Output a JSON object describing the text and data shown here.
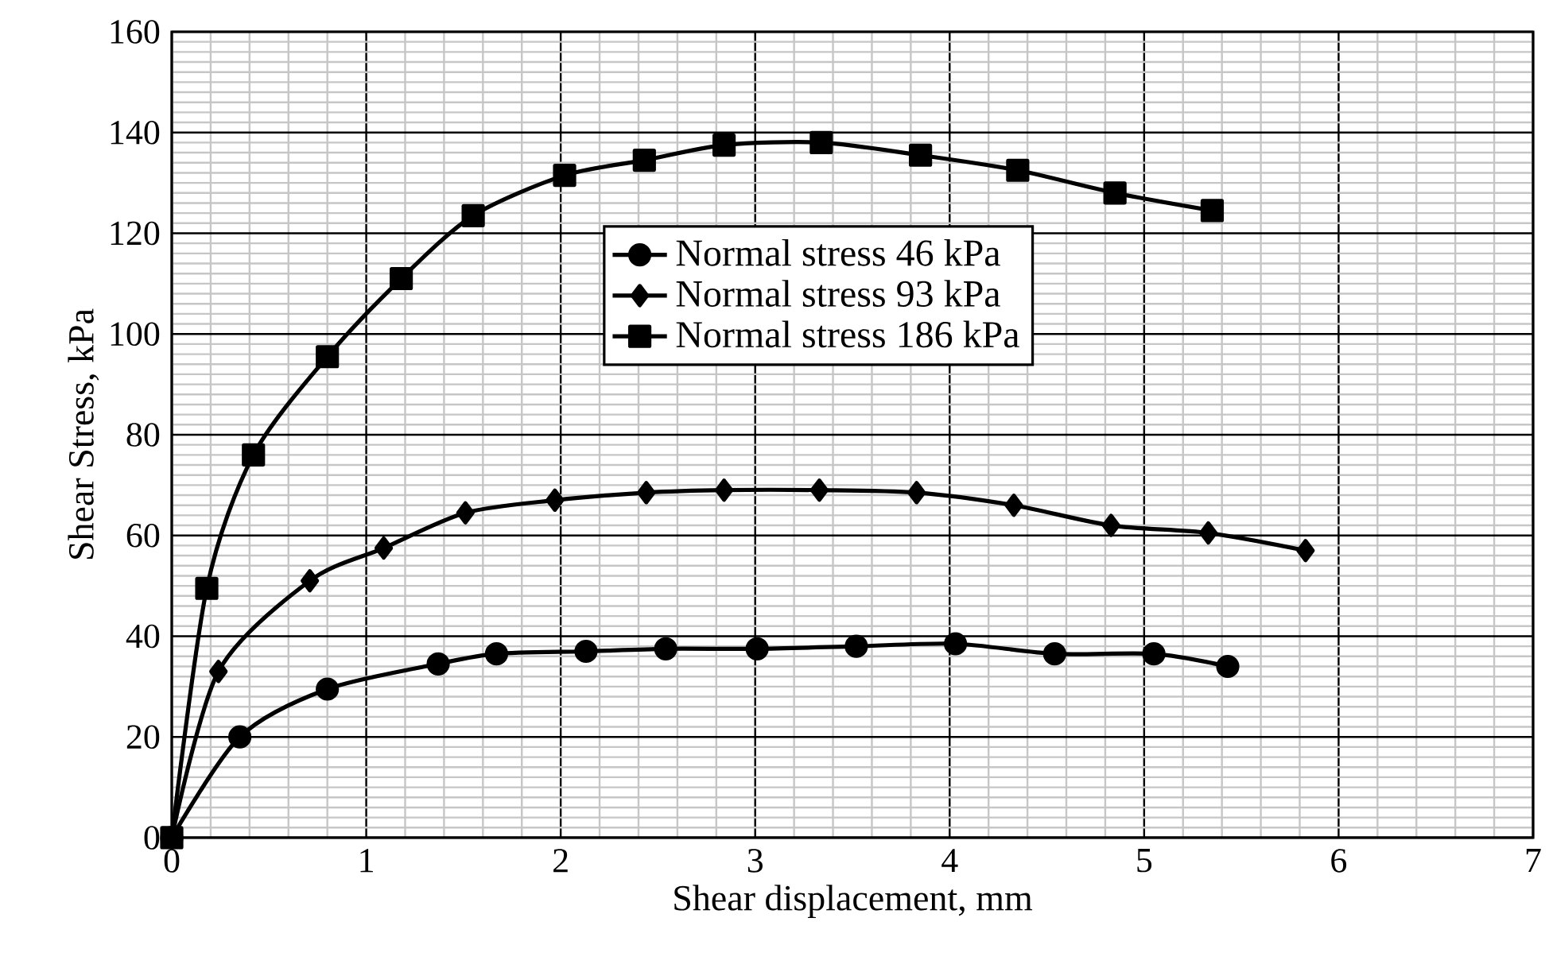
{
  "chart_data": {
    "type": "line",
    "xlabel": "Shear displacement, mm",
    "ylabel": "Shear Stress,  kPa",
    "xlim": [
      0,
      7
    ],
    "ylim": [
      0,
      160
    ],
    "xticks": [
      0,
      1,
      2,
      3,
      4,
      5,
      6,
      7
    ],
    "yticks": [
      0,
      20,
      40,
      60,
      80,
      100,
      120,
      140,
      160
    ],
    "grid": true,
    "legend": "top",
    "line_style": "solid",
    "series": [
      {
        "name": "Normal stress 46 kPa",
        "color": "#000000",
        "marker": "circle",
        "x": [
          0,
          0.35,
          0.8,
          1.37,
          1.67,
          2.13,
          2.54,
          3.01,
          3.52,
          4.03,
          4.54,
          5.05,
          5.43
        ],
        "values": [
          0,
          20,
          29.5,
          34.5,
          36.5,
          37,
          37.5,
          37.5,
          38,
          38.5,
          36.5,
          36.5,
          34
        ]
      },
      {
        "name": "Normal stress 93 kPa",
        "color": "#000000",
        "marker": "diamond",
        "x": [
          0,
          0.24,
          0.71,
          1.09,
          1.51,
          1.97,
          2.44,
          2.84,
          3.33,
          3.83,
          4.33,
          4.83,
          5.33,
          5.83
        ],
        "values": [
          0,
          33,
          51,
          57.5,
          64.5,
          67,
          68.5,
          69,
          69,
          68.5,
          66,
          62,
          60.5,
          57
        ]
      },
      {
        "name": "Normal stress 186 kPa",
        "color": "#000000",
        "marker": "square",
        "x": [
          0,
          0.18,
          0.42,
          0.8,
          1.18,
          1.55,
          2.02,
          2.43,
          2.84,
          3.34,
          3.85,
          4.35,
          4.85,
          5.35
        ],
        "values": [
          0,
          49.5,
          76,
          95.5,
          111,
          123.5,
          131.5,
          134.5,
          137.5,
          138,
          135.5,
          132.5,
          128,
          124.5
        ]
      }
    ]
  }
}
